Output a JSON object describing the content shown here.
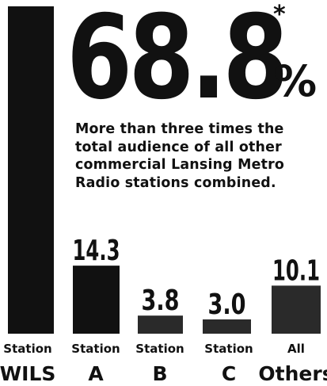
{
  "headline": {
    "value": "68.8",
    "asterisk": "*",
    "unit": "%"
  },
  "description_lines": [
    "More than three times the",
    "total audience of all other",
    "commercial Lansing Metro",
    "Radio stations combined."
  ],
  "colors": {
    "bar": "#111111",
    "bar_other": "#2a2a2a",
    "background": "#ffffff"
  },
  "chart_data": {
    "type": "bar",
    "categories": [
      [
        "Station",
        "WILS"
      ],
      [
        "Station",
        "A"
      ],
      [
        "Station",
        "B"
      ],
      [
        "Station",
        "C"
      ],
      [
        "All",
        "Others"
      ]
    ],
    "values": [
      68.8,
      14.3,
      3.8,
      3.0,
      10.1
    ],
    "value_labels": [
      "",
      "14.3",
      "3.8",
      "3.0",
      "10.1"
    ],
    "ylim": [
      0,
      68.8
    ]
  }
}
